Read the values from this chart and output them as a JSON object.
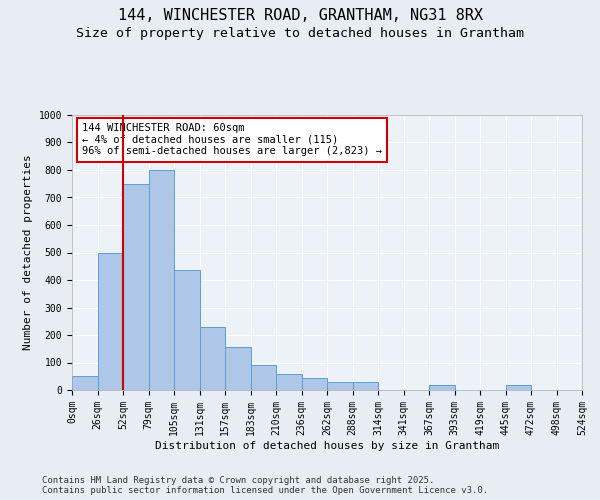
{
  "title": "144, WINCHESTER ROAD, GRANTHAM, NG31 8RX",
  "subtitle": "Size of property relative to detached houses in Grantham",
  "xlabel": "Distribution of detached houses by size in Grantham",
  "ylabel": "Number of detached properties",
  "bar_labels": [
    "0sqm",
    "26sqm",
    "52sqm",
    "79sqm",
    "105sqm",
    "131sqm",
    "157sqm",
    "183sqm",
    "210sqm",
    "236sqm",
    "262sqm",
    "288sqm",
    "314sqm",
    "341sqm",
    "367sqm",
    "393sqm",
    "419sqm",
    "445sqm",
    "472sqm",
    "498sqm",
    "524sqm"
  ],
  "bar_heights": [
    52,
    500,
    750,
    800,
    435,
    230,
    155,
    90,
    60,
    45,
    30,
    30,
    0,
    0,
    20,
    0,
    0,
    20,
    0,
    0
  ],
  "bar_color": "#aec6e8",
  "bar_edge_color": "#5a9fd4",
  "vline_x": 2,
  "vline_color": "#cc0000",
  "annotation_text": "144 WINCHESTER ROAD: 60sqm\n← 4% of detached houses are smaller (115)\n96% of semi-detached houses are larger (2,823) →",
  "annotation_box_color": "#cc0000",
  "ylim": [
    0,
    1000
  ],
  "yticks": [
    0,
    100,
    200,
    300,
    400,
    500,
    600,
    700,
    800,
    900,
    1000
  ],
  "background_color": "#e8edf4",
  "plot_bg_color": "#edf1f8",
  "grid_color": "#ffffff",
  "footer": "Contains HM Land Registry data © Crown copyright and database right 2025.\nContains public sector information licensed under the Open Government Licence v3.0.",
  "title_fontsize": 11,
  "subtitle_fontsize": 9.5,
  "axis_label_fontsize": 8,
  "tick_fontsize": 7,
  "annotation_fontsize": 7.5,
  "footer_fontsize": 6.5
}
